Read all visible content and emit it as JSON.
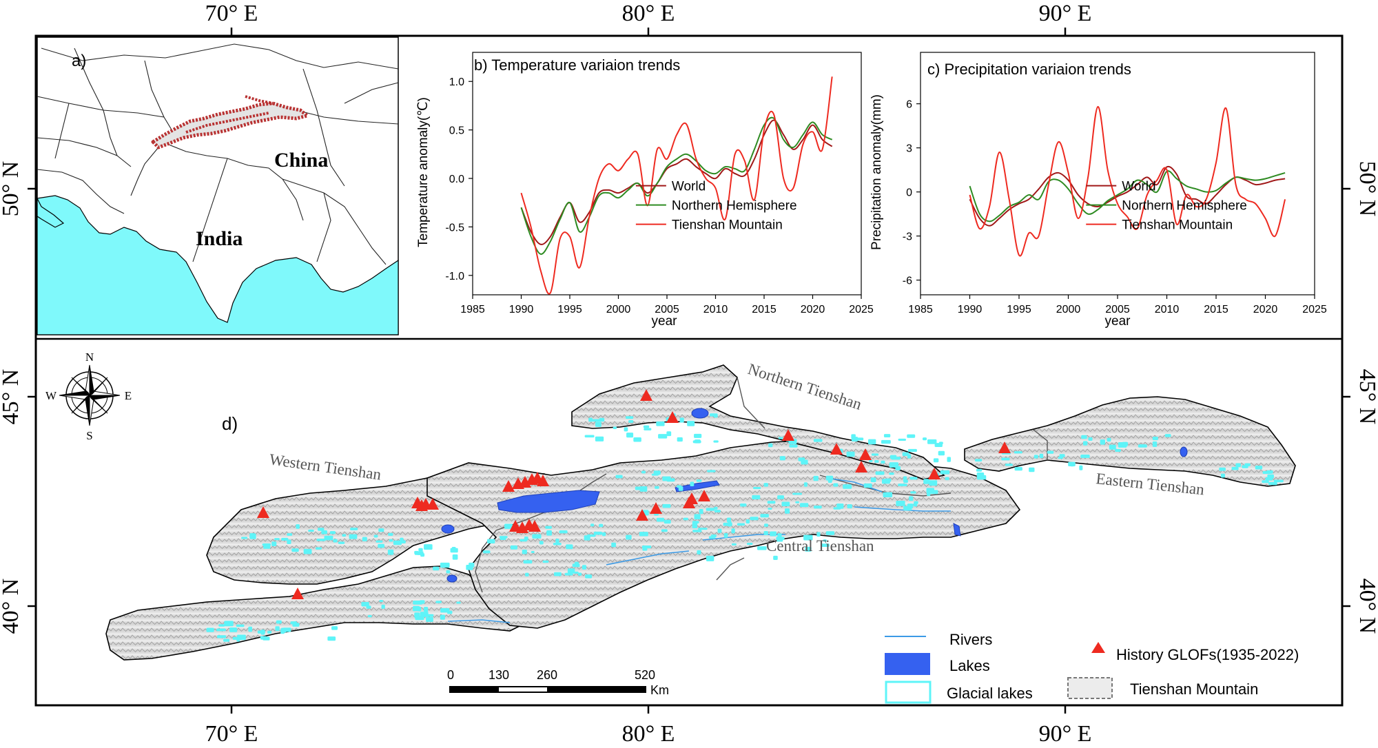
{
  "frame": {
    "top_longitudes": [
      "70° E",
      "80° E",
      "90° E"
    ],
    "bottom_longitudes": [
      "70° E",
      "80° E",
      "90° E"
    ],
    "left_latitudes": [
      "50° N",
      "45° N",
      "40° N"
    ],
    "right_latitudes": [
      "50° N",
      "45° N",
      "40° N"
    ]
  },
  "inset_a": {
    "label": "a)",
    "country_labels": [
      "China",
      "India"
    ],
    "colors": {
      "sea": "#7ff9fb",
      "tienshan_outline": "#b83232"
    }
  },
  "chart_data": [
    {
      "type": "line",
      "panel": "b",
      "title": "b) Temperature variaion trends",
      "xlabel": "year",
      "ylabel": "Temperature anomaly(℃)",
      "xlim": [
        1985,
        2025
      ],
      "ylim": [
        -1.2,
        1.3
      ],
      "xticks": [
        1985,
        1990,
        1995,
        2000,
        2005,
        2010,
        2015,
        2020,
        2025
      ],
      "yticks": [
        -1.0,
        -0.5,
        0.0,
        0.5,
        1.0
      ],
      "ytick_labels": [
        "-1.0",
        "-0.5",
        "0.0",
        "0.5",
        "1.0"
      ],
      "legend": "bottom-right",
      "series": [
        {
          "name": "World",
          "color": "#a01818",
          "x": [
            1990,
            1991,
            1992,
            1993,
            1994,
            1995,
            1996,
            1997,
            1998,
            1999,
            2000,
            2001,
            2002,
            2003,
            2004,
            2005,
            2006,
            2007,
            2008,
            2009,
            2010,
            2011,
            2012,
            2013,
            2014,
            2015,
            2016,
            2017,
            2018,
            2019,
            2020,
            2021,
            2022
          ],
          "values": [
            -0.3,
            -0.55,
            -0.68,
            -0.6,
            -0.4,
            -0.25,
            -0.45,
            -0.35,
            -0.15,
            -0.12,
            -0.15,
            -0.1,
            -0.05,
            -0.15,
            -0.05,
            0.1,
            0.15,
            0.2,
            0.12,
            0.05,
            0.0,
            0.1,
            0.05,
            0.03,
            0.2,
            0.45,
            0.6,
            0.45,
            0.3,
            0.4,
            0.55,
            0.4,
            0.33
          ]
        },
        {
          "name": "Northern Hemisphere",
          "color": "#2e8b22",
          "x": [
            1990,
            1991,
            1992,
            1993,
            1994,
            1995,
            1996,
            1997,
            1998,
            1999,
            2000,
            2001,
            2002,
            2003,
            2004,
            2005,
            2006,
            2007,
            2008,
            2009,
            2010,
            2011,
            2012,
            2013,
            2014,
            2015,
            2016,
            2017,
            2018,
            2019,
            2020,
            2021,
            2022
          ],
          "values": [
            -0.3,
            -0.6,
            -0.78,
            -0.65,
            -0.42,
            -0.25,
            -0.55,
            -0.4,
            -0.18,
            -0.15,
            -0.2,
            -0.12,
            -0.05,
            -0.18,
            -0.05,
            0.12,
            0.2,
            0.25,
            0.18,
            0.08,
            0.05,
            0.12,
            0.1,
            0.08,
            0.3,
            0.55,
            0.62,
            0.4,
            0.32,
            0.45,
            0.58,
            0.45,
            0.4
          ]
        },
        {
          "name": "Tienshan Mountain",
          "color": "#ee2a20",
          "x": [
            1990,
            1991,
            1992,
            1993,
            1994,
            1995,
            1996,
            1997,
            1998,
            1999,
            2000,
            2001,
            2002,
            2003,
            2004,
            2005,
            2006,
            2007,
            2008,
            2009,
            2010,
            2011,
            2012,
            2013,
            2014,
            2015,
            2016,
            2017,
            2018,
            2019,
            2020,
            2021,
            2022
          ],
          "values": [
            -0.15,
            -0.5,
            -0.95,
            -1.18,
            -0.62,
            -0.6,
            -0.92,
            -0.4,
            0.0,
            0.15,
            0.08,
            0.2,
            0.25,
            -0.28,
            0.3,
            0.2,
            0.45,
            0.56,
            0.2,
            0.0,
            -0.1,
            -0.42,
            0.25,
            0.18,
            -0.22,
            0.5,
            0.66,
            0.0,
            -0.1,
            0.35,
            0.48,
            0.3,
            1.05
          ]
        }
      ]
    },
    {
      "type": "line",
      "panel": "c",
      "title": "c) Precipitation variaion trends",
      "xlabel": "year",
      "ylabel": "Precipitation anomaly(mm)",
      "xlim": [
        1985,
        2025
      ],
      "ylim": [
        -7,
        9.5
      ],
      "xticks": [
        1985,
        1990,
        1995,
        2000,
        2005,
        2010,
        2015,
        2020,
        2025
      ],
      "yticks": [
        -6,
        -3,
        0,
        3,
        6
      ],
      "ytick_labels": [
        "-6",
        "-3",
        "0",
        "3",
        "6"
      ],
      "legend": "bottom-right",
      "series": [
        {
          "name": "World",
          "color": "#a01818",
          "x": [
            1990,
            1991,
            1992,
            1993,
            1994,
            1995,
            1996,
            1997,
            1998,
            1999,
            2000,
            2001,
            2002,
            2003,
            2004,
            2005,
            2006,
            2007,
            2008,
            2009,
            2010,
            2011,
            2012,
            2013,
            2014,
            2015,
            2016,
            2017,
            2018,
            2019,
            2020,
            2021,
            2022
          ],
          "values": [
            -0.5,
            -1.8,
            -2.3,
            -1.8,
            -1.2,
            -0.8,
            -0.5,
            0.2,
            1.0,
            1.3,
            0.8,
            -0.2,
            -0.8,
            -1.0,
            -0.7,
            -0.3,
            0.0,
            0.5,
            1.0,
            0.5,
            1.7,
            1.2,
            -0.3,
            -0.5,
            -0.8,
            -0.2,
            0.5,
            1.0,
            0.8,
            0.5,
            0.6,
            0.8,
            0.9
          ]
        },
        {
          "name": "Northern Hemisphere",
          "color": "#2e8b22",
          "x": [
            1990,
            1991,
            1992,
            1993,
            1994,
            1995,
            1996,
            1997,
            1998,
            1999,
            2000,
            2001,
            2002,
            2003,
            2004,
            2005,
            2006,
            2007,
            2008,
            2009,
            2010,
            2011,
            2012,
            2013,
            2014,
            2015,
            2016,
            2017,
            2018,
            2019,
            2020,
            2021,
            2022
          ],
          "values": [
            0.4,
            -1.5,
            -2.0,
            -1.6,
            -1.0,
            -0.7,
            -0.2,
            -0.5,
            0.7,
            0.8,
            0.2,
            -0.8,
            -1.5,
            -1.2,
            -0.6,
            -0.2,
            0.2,
            0.8,
            0.5,
            0.0,
            1.4,
            0.9,
            0.4,
            0.2,
            0.0,
            0.1,
            0.6,
            1.0,
            0.9,
            0.8,
            0.9,
            1.1,
            1.3
          ]
        },
        {
          "name": "Tienshan Mountain",
          "color": "#ee2a20",
          "x": [
            1990,
            1991,
            1992,
            1993,
            1994,
            1995,
            1996,
            1997,
            1998,
            1999,
            2000,
            2001,
            2002,
            2003,
            2004,
            2005,
            2006,
            2007,
            2008,
            2009,
            2010,
            2011,
            2012,
            2013,
            2014,
            2015,
            2016,
            2017,
            2018,
            2019,
            2020,
            2021,
            2022
          ],
          "values": [
            -0.2,
            -2.5,
            -1.0,
            2.7,
            -0.5,
            -4.3,
            -2.8,
            -3.0,
            0.5,
            3.4,
            1.3,
            -1.8,
            1.0,
            5.8,
            1.5,
            -0.8,
            -1.7,
            -2.5,
            -0.2,
            0.8,
            1.5,
            -2.2,
            -0.2,
            -1.0,
            -0.5,
            2.0,
            5.7,
            0.5,
            -0.5,
            -0.8,
            -1.8,
            -3.0,
            -0.5
          ]
        }
      ]
    }
  ],
  "map_d": {
    "label": "d)",
    "compass": {
      "n": "N",
      "s": "S",
      "e": "E",
      "w": "W"
    },
    "region_labels": [
      "Northern Tienshan",
      "Western Tienshan",
      "Central Tienshan",
      "Eastern Tienshan"
    ],
    "scale_bar": {
      "ticks": [
        "0",
        "130",
        "260",
        "520"
      ],
      "unit": "Km"
    },
    "legend": {
      "rivers": "Rivers",
      "lakes": "Lakes",
      "glacial_lakes": "Glacial lakes",
      "glofs": "History GLOFs(1935-2022)",
      "tienshan": "Tienshan Mountain"
    },
    "colors": {
      "glof": "#ee2a20",
      "lake": "#3561f0",
      "glacial_lake": "#5ef4f8",
      "river": "#3b9ae6",
      "terrain": "#d9d9d9"
    }
  }
}
